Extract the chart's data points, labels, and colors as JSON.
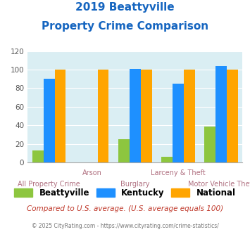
{
  "title_line1": "2019 Beattyville",
  "title_line2": "Property Crime Comparison",
  "categories": [
    "All Property Crime",
    "Arson",
    "Burglary",
    "Larceny & Theft",
    "Motor Vehicle Theft"
  ],
  "beattyville": [
    13,
    0,
    25,
    6,
    39
  ],
  "kentucky": [
    90,
    0,
    101,
    85,
    104
  ],
  "national": [
    100,
    100,
    100,
    100,
    100
  ],
  "color_beattyville": "#8dc63f",
  "color_kentucky": "#1e90ff",
  "color_national": "#ffa500",
  "title_color": "#1565c0",
  "xlabel_color": "#b07080",
  "bg_color": "#daeef3",
  "ylim": [
    0,
    120
  ],
  "yticks": [
    0,
    20,
    40,
    60,
    80,
    100,
    120
  ],
  "footnote": "Compared to U.S. average. (U.S. average equals 100)",
  "copyright": "© 2025 CityRating.com - https://www.cityrating.com/crime-statistics/",
  "footnote_color": "#c0392b",
  "copyright_color": "#777777",
  "legend_labels": [
    "Beattyville",
    "Kentucky",
    "National"
  ],
  "cat_top": [
    "",
    "Arson",
    "",
    "Larceny & Theft",
    ""
  ],
  "cat_bottom": [
    "All Property Crime",
    "",
    "Burglary",
    "",
    "Motor Vehicle Theft"
  ]
}
